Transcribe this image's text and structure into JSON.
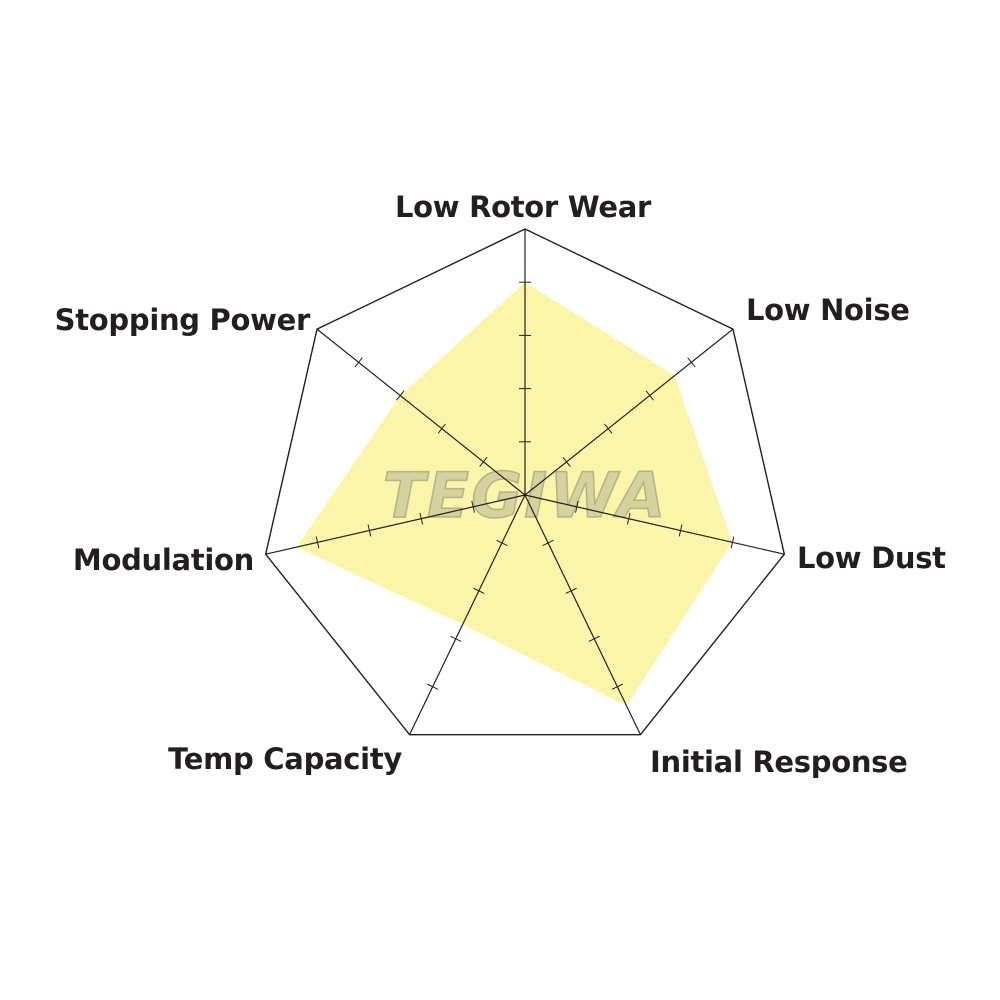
{
  "chart_data": {
    "type": "radar",
    "axes": [
      "Low Rotor Wear",
      "Low Noise",
      "Low Dust",
      "Initial Response",
      "Temp Capacity",
      "Modulation",
      "Stopping Power"
    ],
    "values": [
      4,
      3.6,
      4,
      4.4,
      2.7,
      4.4,
      3
    ],
    "range": [
      0,
      5
    ],
    "tick_step": 1,
    "grid": "outer polygon only with tick marks",
    "fill_color": "#fbf5aa",
    "line_color": "#231f20",
    "label_color": "#231f20"
  },
  "watermark": "TEGIWA"
}
